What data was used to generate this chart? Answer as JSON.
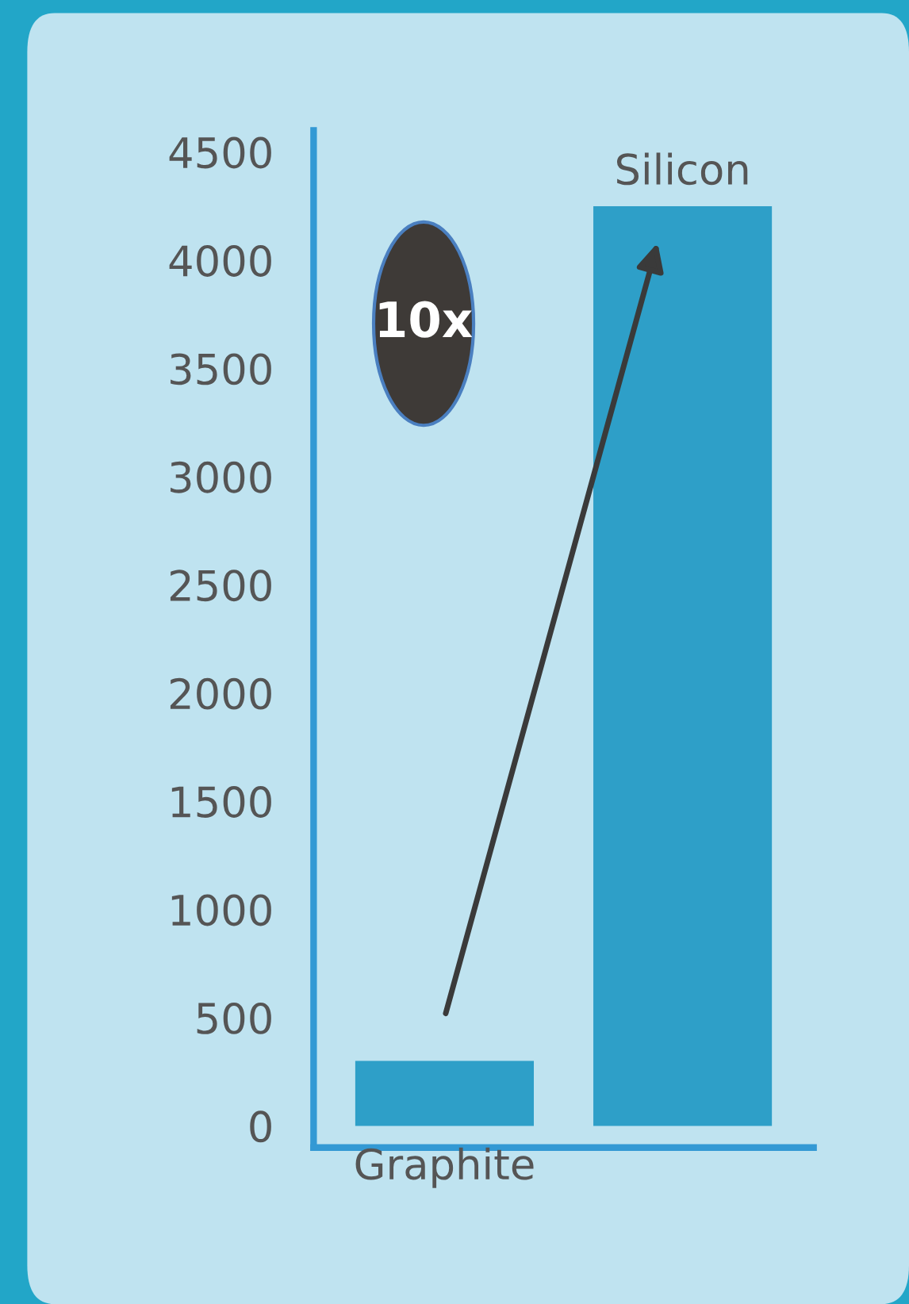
{
  "chart_data": {
    "type": "bar",
    "categories": [
      "Graphite",
      "Silicon"
    ],
    "values": [
      300,
      4250
    ],
    "color": "#2e9fc8",
    "ylim": [
      -100,
      4600
    ],
    "yticks": [
      0,
      500,
      1000,
      1500,
      2000,
      2500,
      3000,
      3500,
      4000,
      4500
    ],
    "grid": false,
    "annotations": [
      "10x"
    ]
  }
}
